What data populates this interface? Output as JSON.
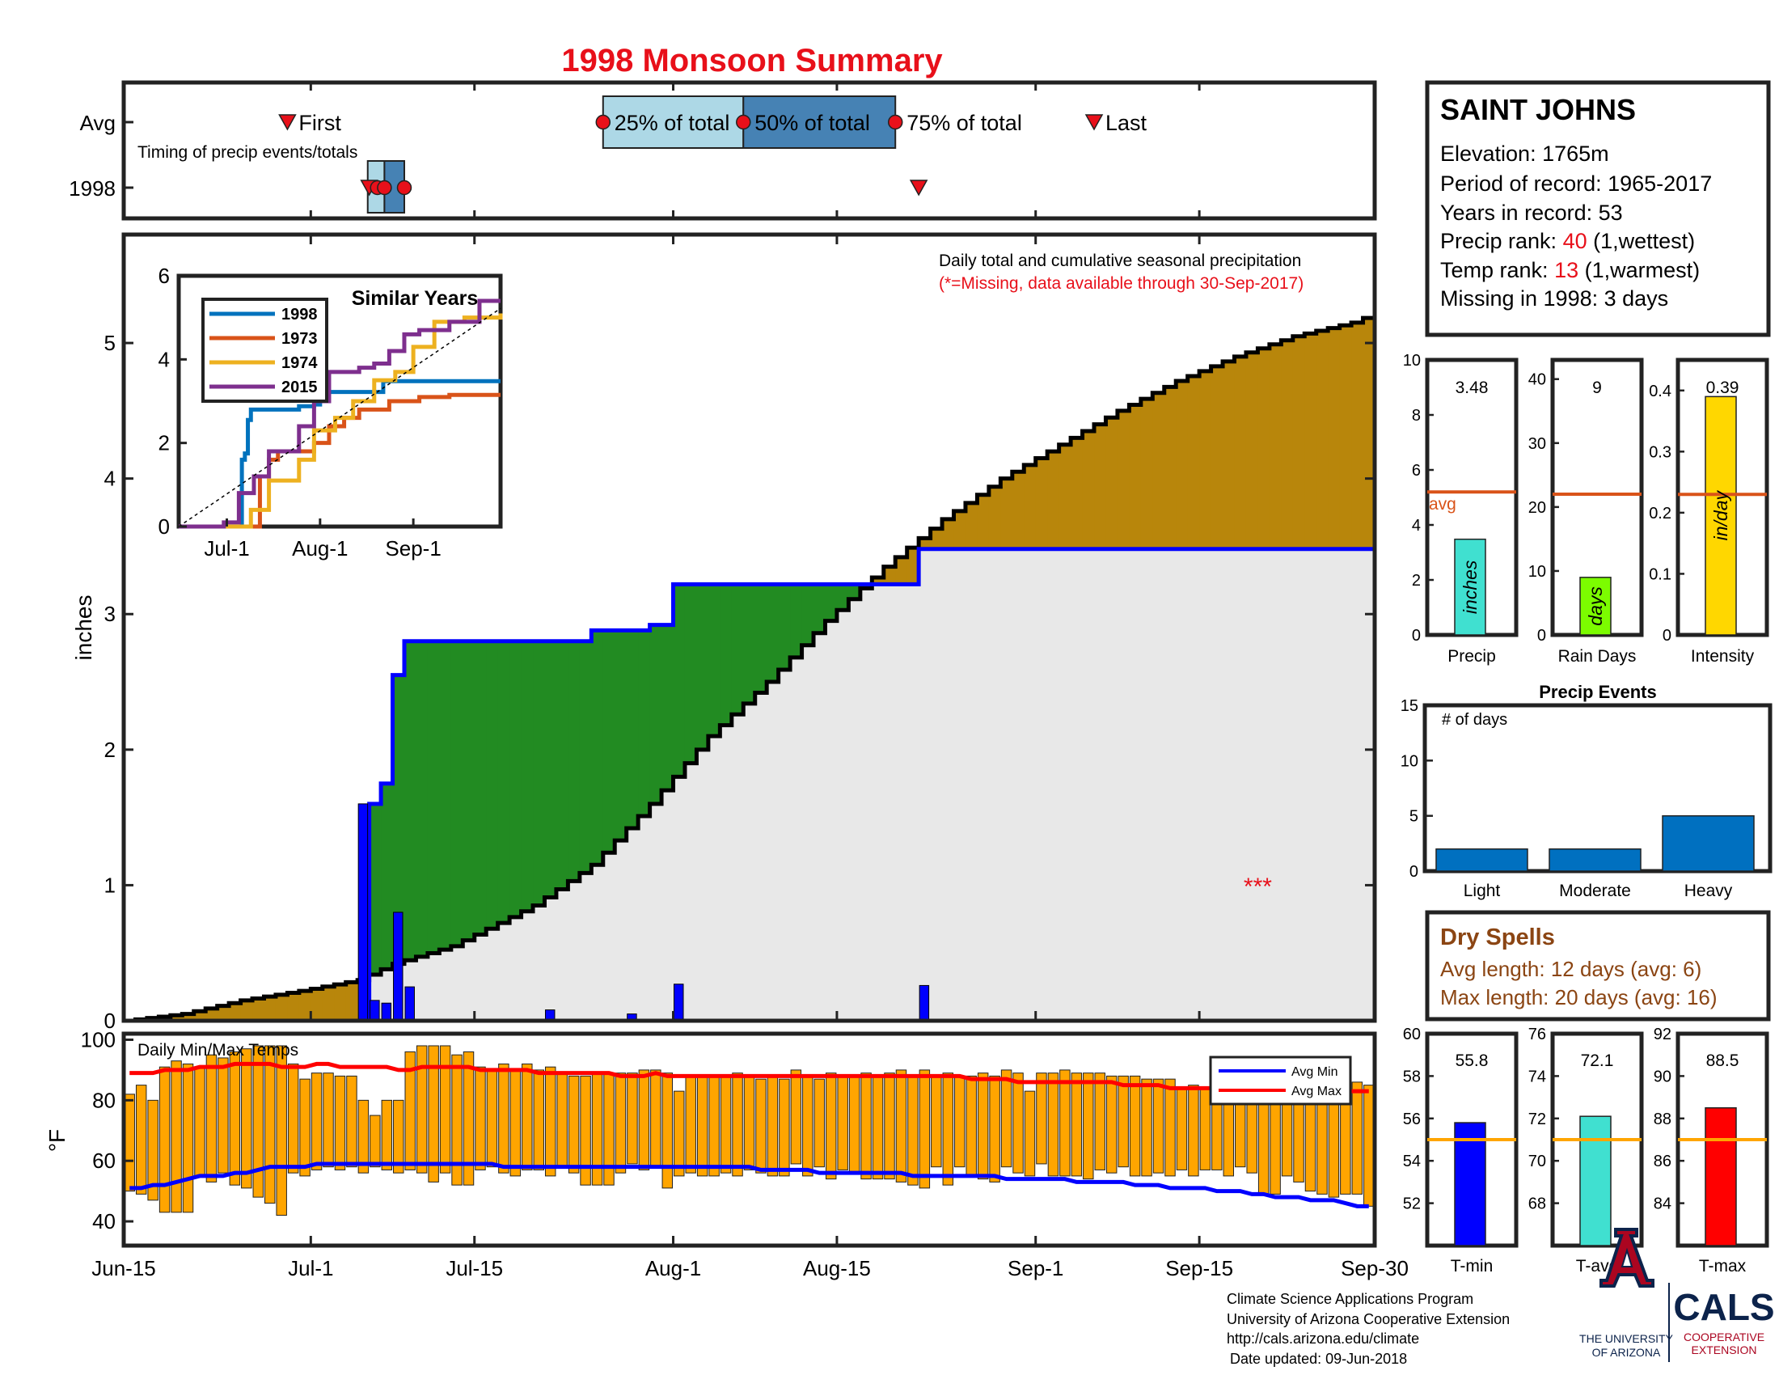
{
  "title": "1998 Monsoon Summary",
  "timing": {
    "row_avg": "Avg",
    "row_year": "1998",
    "caption": "Timing of precip events/totals",
    "first_label": "First",
    "last_label": "Last",
    "p25_label": "25% of total",
    "p50_label": "50% of total",
    "p75_label": "75% of total",
    "avg_first_day": 14,
    "avg_p25_day": 41,
    "avg_p50_day": 53,
    "avg_p75_day": 66,
    "avg_last_day": 83,
    "year_first_day": 21,
    "year_p25_day": 21.7,
    "year_p50_day": 22.3,
    "year_p75_day": 24,
    "year_last_day": 68
  },
  "station": {
    "name": "SAINT JOHNS",
    "elevation": "Elevation: 1765m",
    "period": "Period of record: 1965-2017",
    "years": "Years in record: 53",
    "precip_rank_prefix": "Precip rank: ",
    "precip_rank_value": "40",
    "precip_rank_suffix": " (1,wettest)",
    "temp_rank_prefix": "Temp rank: ",
    "temp_rank_value": "13",
    "temp_rank_suffix": " (1,warmest)",
    "missing": "Missing in 1998: 3 days"
  },
  "main_chart": {
    "ylabel": "inches",
    "note1": "Daily total and cumulative seasonal precipitation",
    "note2": "(*=Missing, data available through 30-Sep-2017)",
    "missing_marker": "***",
    "missing_marker_day": 97,
    "ylim": [
      0,
      5.8
    ],
    "y_ticks": [
      "0",
      "1",
      "2",
      "3",
      "4",
      "5"
    ],
    "x_ticks": [
      "Jun-15",
      "Jul-1",
      "Jul-15",
      "Aug-1",
      "Aug-15",
      "Sep-1",
      "Sep-15",
      "Sep-30"
    ],
    "x_tick_days": [
      0,
      16,
      30,
      47,
      61,
      78,
      92,
      107
    ],
    "colors": {
      "above_avg": "#228b22",
      "below_avg": "#b8860b",
      "base": "#e8e8e8",
      "cumulative": "#0000ff",
      "daily": "#0000ff",
      "avg": "#000000"
    }
  },
  "inset": {
    "title": "Similar Years",
    "x_ticks": [
      "Jul-1",
      "Aug-1",
      "Sep-1"
    ],
    "y_ticks": [
      "0",
      "2",
      "4",
      "6"
    ]
  },
  "temp_chart": {
    "label": "Daily Min/Max Temps",
    "ylabel": "°F",
    "ylim": [
      32,
      102
    ],
    "y_ticks": [
      "40",
      "60",
      "80",
      "100"
    ],
    "legend_min": "Avg Min",
    "legend_max": "Avg Max",
    "colors": {
      "bar": "#ffa500",
      "avg_min": "#0000ff",
      "avg_max": "#ff0000"
    }
  },
  "stats_panels": {
    "precip": {
      "label": "Precip",
      "value_text": "3.48",
      "value": 3.48,
      "avg": 5.2,
      "unit": "inches",
      "ticks": [
        "0",
        "2",
        "4",
        "6",
        "8",
        "10"
      ],
      "ymax": 10,
      "avg_label": "avg",
      "color": "#40e0d0"
    },
    "rain_days": {
      "label": "Rain Days",
      "value_text": "9",
      "value": 9,
      "avg": 22,
      "unit": "days",
      "ticks": [
        "0",
        "10",
        "20",
        "30",
        "40"
      ],
      "ymax": 43,
      "color": "#7cfc00"
    },
    "intensity": {
      "label": "Intensity",
      "value_text": "0.39",
      "value": 0.39,
      "avg": 0.23,
      "unit": "in/day",
      "ticks": [
        "0",
        "0.1",
        "0.2",
        "0.3",
        "0.4"
      ],
      "ymax": 0.45,
      "color": "#ffd700"
    }
  },
  "precip_events": {
    "title": "Precip Events",
    "ylabel_text": "# of days",
    "categories": [
      "Light",
      "Moderate",
      "Heavy"
    ],
    "values": [
      2,
      2,
      5
    ],
    "ticks": [
      "0",
      "5",
      "10",
      "15"
    ],
    "ymax": 15,
    "color": "#0070c0"
  },
  "dry_spells": {
    "title": "Dry Spells",
    "avg_length": "Avg length: 12 days (avg: 6)",
    "max_length": "Max length: 20 days (avg: 16)"
  },
  "temp_panels": {
    "tmin": {
      "label": "T-min",
      "value_text": "55.8",
      "value": 55.8,
      "avg": 55,
      "ymin": 50,
      "ymax": 60,
      "ticks": [
        "52",
        "54",
        "56",
        "58",
        "60"
      ],
      "color": "#0000ff"
    },
    "tavg": {
      "label": "T-avg",
      "value_text": "72.1",
      "value": 72.1,
      "avg": 71,
      "ymin": 66,
      "ymax": 76,
      "ticks": [
        "68",
        "70",
        "72",
        "74",
        "76"
      ],
      "color": "#40e0d0"
    },
    "tmax": {
      "label": "T-max",
      "value_text": "88.5",
      "value": 88.5,
      "avg": 87,
      "ymin": 82,
      "ymax": 92,
      "ticks": [
        "84",
        "86",
        "88",
        "90",
        "92"
      ],
      "color": "#ff0000"
    }
  },
  "footer": {
    "line1": "Climate Science Applications Program",
    "line2": "University of Arizona Cooperative Extension",
    "line3": "http://cals.arizona.edu/climate",
    "line4": "Date updated: 09-Jun-2018",
    "ua_logo_top": "THE UNIVERSITY",
    "ua_logo_bottom": "OF ARIZONA",
    "cals_title": "CALS",
    "cals_sub1": "COOPERATIVE",
    "cals_sub2": "EXTENSION"
  },
  "chart_data": [
    {
      "type": "area",
      "title": "Daily total and cumulative seasonal precipitation",
      "ylabel": "inches",
      "x_start": "Jun-15",
      "x_end": "Sep-30",
      "ylim": [
        0,
        5.8
      ],
      "series": [
        {
          "name": "1998",
          "x_days": [
            0,
            20,
            21,
            22,
            23,
            24,
            25,
            40,
            45,
            47,
            65,
            68,
            107
          ],
          "values": [
            0,
            0,
            1.6,
            1.75,
            2.55,
            2.8,
            2.8,
            2.88,
            2.92,
            3.22,
            3.22,
            3.48,
            3.48
          ]
        },
        {
          "x_days": [
            0,
            5,
            10,
            15,
            20,
            23,
            28,
            35,
            40,
            45,
            50,
            55,
            60,
            65,
            70,
            75,
            80,
            85,
            90,
            95,
            100,
            105,
            107
          ],
          "values": [
            0,
            0.05,
            0.15,
            0.22,
            0.3,
            0.42,
            0.55,
            0.85,
            1.15,
            1.6,
            2.1,
            2.5,
            2.95,
            3.35,
            3.7,
            4.0,
            4.25,
            4.5,
            4.72,
            4.9,
            5.05,
            5.15,
            5.22
          ]
        }
      ],
      "daily_precip": [
        {
          "day": 20,
          "value": 1.6
        },
        {
          "day": 21,
          "value": 0.15
        },
        {
          "day": 22,
          "value": 0.13
        },
        {
          "day": 23,
          "value": 0.8
        },
        {
          "day": 24,
          "value": 0.25
        },
        {
          "day": 36,
          "value": 0.08
        },
        {
          "day": 43,
          "value": 0.05
        },
        {
          "day": 47,
          "value": 0.27
        },
        {
          "day": 68,
          "value": 0.26
        }
      ]
    },
    {
      "type": "line",
      "title": "Similar Years",
      "x_start": "Jun-15",
      "x_end": "Sep-30",
      "ylim": [
        0,
        6
      ],
      "series": [
        {
          "name": "1998",
          "x_days": [
            0,
            20,
            21,
            22,
            23,
            24,
            40,
            45,
            47,
            68,
            107
          ],
          "values": [
            0,
            0,
            1.6,
            1.75,
            2.55,
            2.8,
            2.88,
            2.92,
            3.22,
            3.48,
            3.48
          ]
        },
        {
          "name": "1973",
          "x_days": [
            0,
            25,
            27,
            30,
            33,
            45,
            50,
            55,
            60,
            70,
            80,
            90,
            107
          ],
          "values": [
            0,
            0,
            1.2,
            1.6,
            1.8,
            2.0,
            2.4,
            2.6,
            2.8,
            3.0,
            3.1,
            3.15,
            3.15
          ]
        },
        {
          "name": "1974",
          "x_days": [
            0,
            18,
            24,
            30,
            40,
            45,
            52,
            58,
            65,
            72,
            78,
            85,
            95,
            107
          ],
          "values": [
            0,
            0,
            0.4,
            1.1,
            1.6,
            2.3,
            2.6,
            3.0,
            3.5,
            3.7,
            4.3,
            4.9,
            5.0,
            5.1
          ]
        },
        {
          "name": "2015",
          "x_days": [
            0,
            15,
            20,
            25,
            30,
            40,
            45,
            50,
            55,
            60,
            65,
            70,
            75,
            80,
            90,
            100,
            107
          ],
          "values": [
            0,
            0.1,
            0.8,
            1.2,
            1.8,
            2.4,
            3.0,
            3.7,
            3.7,
            3.8,
            3.9,
            4.2,
            4.6,
            4.7,
            4.9,
            5.4,
            5.4
          ]
        },
        {
          "x_days": [
            0,
            107
          ],
          "values": [
            0,
            5.22
          ]
        }
      ]
    },
    {
      "type": "bar",
      "title": "Daily Min/Max Temps",
      "ylabel": "°F",
      "x_start": "Jun-15",
      "x_end": "Sep-30",
      "ylim": [
        32,
        102
      ],
      "series": [
        {
          "name": "Daily Min",
          "values": [
            50,
            49,
            47,
            43,
            43,
            43,
            55,
            53,
            56,
            52,
            51,
            48,
            46,
            42,
            56,
            55,
            57,
            58,
            57,
            58,
            56,
            58,
            57,
            56,
            57,
            56,
            53,
            56,
            52,
            52,
            57,
            58,
            56,
            55,
            57,
            57,
            55,
            58,
            56,
            52,
            52,
            52,
            56,
            59,
            57,
            58,
            51,
            55,
            56,
            55,
            55,
            56,
            55,
            57,
            56,
            55,
            55,
            59,
            55,
            58,
            54,
            57,
            56,
            54,
            54,
            54,
            53,
            52,
            51,
            58,
            52,
            58,
            55,
            54,
            53,
            58,
            56,
            55,
            59,
            55,
            55,
            55,
            54,
            57,
            56,
            58,
            55,
            55,
            56,
            55,
            57,
            55,
            57,
            57,
            55,
            58,
            56,
            49,
            49,
            55,
            53,
            50,
            49,
            48,
            49,
            49,
            45
          ]
        },
        {
          "name": "Daily Max",
          "values": [
            82,
            85,
            80,
            91,
            93,
            92,
            91,
            95,
            94,
            96,
            97,
            98,
            98,
            98,
            92,
            87,
            89,
            89,
            88,
            88,
            80,
            75,
            80,
            80,
            96,
            98,
            98,
            98,
            95,
            96,
            91,
            90,
            92,
            90,
            92,
            90,
            91,
            89,
            88,
            88,
            89,
            89,
            89,
            89,
            90,
            90,
            89,
            83,
            88,
            88,
            88,
            88,
            89,
            88,
            87,
            88,
            87,
            90,
            88,
            87,
            89,
            88,
            88,
            89,
            88,
            89,
            90,
            88,
            90,
            88,
            89,
            88,
            88,
            89,
            88,
            90,
            89,
            83,
            89,
            89,
            90,
            89,
            89,
            89,
            88,
            88,
            88,
            87,
            87,
            87,
            84,
            85,
            84,
            85,
            89,
            85,
            85,
            85,
            85,
            84,
            89,
            84,
            85,
            85,
            87,
            86,
            85
          ]
        },
        {
          "name": "Avg Min",
          "values": [
            51,
            51,
            52,
            52,
            53,
            54,
            55,
            55,
            55,
            56,
            56,
            57,
            58,
            58,
            58,
            58,
            59,
            59,
            59,
            59,
            59,
            59,
            59,
            59,
            59,
            59,
            59,
            59,
            59,
            59,
            59,
            59,
            58,
            58,
            58,
            58,
            58,
            58,
            58,
            58,
            58,
            58,
            58,
            58,
            58,
            58,
            58,
            58,
            58,
            58,
            58,
            58,
            58,
            58,
            57,
            57,
            57,
            57,
            57,
            56,
            56,
            56,
            56,
            56,
            56,
            56,
            56,
            55,
            55,
            55,
            55,
            55,
            55,
            55,
            55,
            54,
            54,
            54,
            54,
            54,
            54,
            53,
            53,
            53,
            53,
            53,
            52,
            52,
            52,
            51,
            51,
            51,
            51,
            50,
            50,
            50,
            49,
            49,
            48,
            48,
            48,
            47,
            47,
            47,
            46,
            45,
            45
          ]
        },
        {
          "name": "Avg Max",
          "values": [
            89,
            89,
            89,
            90,
            90,
            90,
            91,
            91,
            91,
            92,
            92,
            92,
            92,
            91,
            91,
            91,
            92,
            92,
            91,
            91,
            91,
            91,
            91,
            90,
            90,
            91,
            91,
            91,
            91,
            91,
            90,
            90,
            90,
            90,
            90,
            89,
            89,
            89,
            89,
            89,
            89,
            89,
            88,
            88,
            88,
            89,
            88,
            88,
            88,
            88,
            88,
            88,
            88,
            88,
            88,
            88,
            88,
            88,
            88,
            88,
            88,
            88,
            88,
            88,
            88,
            88,
            88,
            88,
            88,
            88,
            88,
            88,
            87,
            87,
            87,
            87,
            86,
            86,
            86,
            86,
            86,
            86,
            86,
            86,
            86,
            85,
            85,
            85,
            85,
            84,
            84,
            84,
            84,
            84,
            84,
            84,
            83,
            83,
            83,
            83,
            83,
            83,
            83,
            83,
            83,
            83,
            83
          ]
        }
      ]
    },
    {
      "type": "bar",
      "title": "Precip Events",
      "categories": [
        "Light",
        "Moderate",
        "Heavy"
      ],
      "values": [
        2,
        2,
        5
      ],
      "ylim": [
        0,
        15
      ]
    }
  ]
}
